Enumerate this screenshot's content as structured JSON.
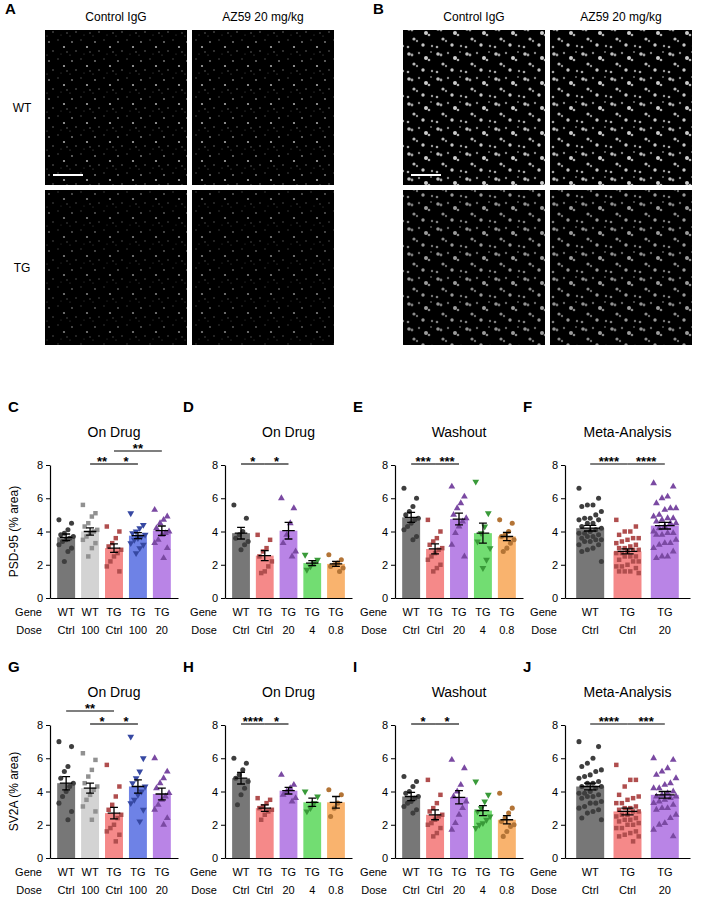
{
  "images": [
    {
      "panel": "A",
      "columns": [
        "Control IgG",
        "AZ59 20 mg/kg"
      ],
      "rows": [
        "WT",
        "TG"
      ]
    },
    {
      "panel": "B",
      "columns": [
        "Control IgG",
        "AZ59 20 mg/kg"
      ]
    }
  ],
  "chart_data": [
    {
      "type": "bar",
      "panel": "C",
      "title": "On Drug",
      "y_label": "PSD-95 (% area)",
      "row_labels": [
        "Gene",
        "Dose"
      ],
      "categories": [
        "WT",
        "WT",
        "TG",
        "TG",
        "TG"
      ],
      "doses": [
        "Ctrl",
        "100",
        "Ctrl",
        "100",
        "20"
      ],
      "values": [
        3.65,
        4.0,
        3.0,
        3.75,
        4.05
      ],
      "errors": [
        0.2,
        0.22,
        0.25,
        0.18,
        0.28
      ],
      "points": [
        [
          4.7,
          4.5,
          4.1,
          3.9,
          3.8,
          3.7,
          3.6,
          3.5,
          3.4,
          3.2,
          3.0,
          2.8,
          2.2
        ],
        [
          5.6,
          5.1,
          4.9,
          4.5,
          4.3,
          4.1,
          4.0,
          3.9,
          3.7,
          3.5,
          3.3,
          3.0,
          2.5
        ],
        [
          4.3,
          4.0,
          3.6,
          3.3,
          3.1,
          2.9,
          2.7,
          2.5,
          2.2,
          1.9,
          1.6
        ],
        [
          5.1,
          4.4,
          4.2,
          4.0,
          3.9,
          3.8,
          3.7,
          3.6,
          3.5,
          3.3,
          3.2,
          3.0,
          2.7
        ],
        [
          5.3,
          4.9,
          4.7,
          4.5,
          4.2,
          4.0,
          3.9,
          3.8,
          3.5,
          3.3,
          3.0,
          2.4
        ]
      ],
      "colors": [
        "#555555",
        "#c8c8c8",
        "#f26b6b",
        "#4a63e0",
        "#a865e0"
      ],
      "markers": [
        "circle",
        "square",
        "square",
        "triangle-down",
        "triangle"
      ],
      "ylim": [
        0,
        8
      ],
      "yticks": [
        0,
        2,
        4,
        6,
        8
      ],
      "significance": [
        {
          "from": 1,
          "to": 2,
          "label": "**"
        },
        {
          "from": 2,
          "to": 3,
          "label": "*"
        },
        {
          "from": 2,
          "to": 4,
          "label": "**"
        }
      ]
    },
    {
      "type": "bar",
      "panel": "D",
      "title": "On Drug",
      "row_labels": [
        "Gene",
        "Dose"
      ],
      "categories": [
        "WT",
        "TG",
        "TG",
        "TG",
        "TG"
      ],
      "doses": [
        "Ctrl",
        "Ctrl",
        "20",
        "4",
        "0.8"
      ],
      "values": [
        3.9,
        2.55,
        4.05,
        2.1,
        2.05
      ],
      "errors": [
        0.35,
        0.3,
        0.5,
        0.15,
        0.15
      ],
      "points": [
        [
          5.6,
          4.8,
          4.0,
          3.8,
          3.6,
          3.4,
          3.2,
          2.9
        ],
        [
          3.8,
          3.5,
          3.0,
          2.8,
          2.5,
          2.2,
          1.9,
          1.6,
          1.5
        ],
        [
          6.0,
          5.4,
          4.5,
          3.8,
          3.3,
          2.8,
          2.5
        ],
        [
          2.6,
          2.3,
          2.1,
          1.9,
          1.7
        ],
        [
          2.6,
          2.3,
          2.1,
          2.0,
          1.9,
          1.8,
          1.6
        ]
      ],
      "colors": [
        "#555555",
        "#f26b6b",
        "#a865e0",
        "#4fd44f",
        "#f7a04a"
      ],
      "markers": [
        "circle",
        "square",
        "triangle",
        "triangle-down",
        "circle"
      ],
      "ylim": [
        0,
        8
      ],
      "yticks": [
        0,
        2,
        4,
        6,
        8
      ],
      "significance": [
        {
          "from": 0,
          "to": 1,
          "label": "*"
        },
        {
          "from": 1,
          "to": 2,
          "label": "*"
        }
      ]
    },
    {
      "type": "bar",
      "panel": "E",
      "title": "Washout",
      "row_labels": [
        "Gene",
        "Dose"
      ],
      "categories": [
        "WT",
        "TG",
        "TG",
        "TG",
        "TG"
      ],
      "doses": [
        "Ctrl",
        "Ctrl",
        "20",
        "4",
        "0.8"
      ],
      "values": [
        4.85,
        2.95,
        4.75,
        3.9,
        3.7
      ],
      "errors": [
        0.3,
        0.3,
        0.35,
        0.6,
        0.25
      ],
      "points": [
        [
          6.6,
          6.0,
          5.5,
          5.2,
          5.0,
          4.8,
          4.7,
          4.5,
          4.3,
          4.1,
          3.7,
          3.5
        ],
        [
          4.7,
          4.0,
          3.6,
          3.4,
          3.2,
          3.0,
          2.9,
          2.7,
          2.5,
          2.3,
          2.0,
          1.8,
          1.6
        ],
        [
          6.7,
          6.1,
          5.7,
          5.4,
          5.0,
          4.8,
          4.6,
          4.3,
          3.9,
          3.2,
          2.5
        ],
        [
          7.0,
          5.1,
          4.3,
          3.9,
          3.4,
          3.0,
          2.3,
          1.8
        ],
        [
          4.7,
          4.5,
          4.0,
          3.8,
          3.7,
          3.5,
          3.3,
          3.0,
          2.8
        ]
      ],
      "colors": [
        "#555555",
        "#f26b6b",
        "#a865e0",
        "#4fd44f",
        "#f7a04a"
      ],
      "markers": [
        "circle",
        "square",
        "triangle",
        "triangle-down",
        "circle"
      ],
      "ylim": [
        0,
        8
      ],
      "yticks": [
        0,
        2,
        4,
        6,
        8
      ],
      "significance": [
        {
          "from": 0,
          "to": 1,
          "label": "***"
        },
        {
          "from": 1,
          "to": 2,
          "label": "***"
        }
      ]
    },
    {
      "type": "bar",
      "panel": "F",
      "title": "Meta-Analysis",
      "row_labels": [
        "Gene",
        "Dose"
      ],
      "categories": [
        "WT",
        "TG",
        "TG"
      ],
      "doses": [
        "Ctrl",
        "Ctrl",
        "20"
      ],
      "values": [
        4.2,
        2.8,
        4.35
      ],
      "errors": [
        0.17,
        0.15,
        0.2
      ],
      "points": [
        [
          6.6,
          6.0,
          5.6,
          5.6,
          5.5,
          5.2,
          5.0,
          4.8,
          4.8,
          4.7,
          4.7,
          4.5,
          4.5,
          4.3,
          4.2,
          4.1,
          4.0,
          3.9,
          3.9,
          3.8,
          3.7,
          3.7,
          3.6,
          3.5,
          3.5,
          3.4,
          3.4,
          3.2,
          3.2,
          3.0,
          2.9,
          2.8,
          2.2
        ],
        [
          4.7,
          4.3,
          4.0,
          4.0,
          3.8,
          3.6,
          3.6,
          3.5,
          3.4,
          3.3,
          3.2,
          3.1,
          3.0,
          3.0,
          2.9,
          2.9,
          2.8,
          2.7,
          2.7,
          2.5,
          2.5,
          2.5,
          2.3,
          2.2,
          2.2,
          2.0,
          1.9,
          1.9,
          1.8,
          1.6,
          1.6,
          1.6,
          1.5
        ],
        [
          6.9,
          6.7,
          6.1,
          6.0,
          5.7,
          5.4,
          5.4,
          5.3,
          5.0,
          4.9,
          4.8,
          4.8,
          4.7,
          4.6,
          4.5,
          4.5,
          4.3,
          4.2,
          4.0,
          3.9,
          3.9,
          3.8,
          3.8,
          3.5,
          3.3,
          3.3,
          3.2,
          3.0,
          2.8,
          2.5,
          2.5,
          2.4
        ]
      ],
      "colors": [
        "#555555",
        "#f26b6b",
        "#a865e0"
      ],
      "markers": [
        "circle",
        "square",
        "triangle"
      ],
      "ylim": [
        0,
        8
      ],
      "yticks": [
        0,
        2,
        4,
        6,
        8
      ],
      "significance": [
        {
          "from": 0,
          "to": 1,
          "label": "****"
        },
        {
          "from": 1,
          "to": 2,
          "label": "****"
        }
      ]
    },
    {
      "type": "bar",
      "panel": "G",
      "title": "On Drug",
      "y_label": "SV2A (% area)",
      "row_labels": [
        "Gene",
        "Dose"
      ],
      "categories": [
        "WT",
        "WT",
        "TG",
        "TG",
        "TG"
      ],
      "doses": [
        "Ctrl",
        "100",
        "Ctrl",
        "100",
        "20"
      ],
      "values": [
        4.5,
        4.2,
        2.7,
        4.3,
        3.85
      ],
      "errors": [
        0.4,
        0.3,
        0.35,
        0.4,
        0.35
      ],
      "points": [
        [
          7.0,
          6.7,
          5.5,
          5.2,
          4.8,
          4.5,
          4.3,
          4.0,
          3.7,
          3.3,
          2.8,
          2.3
        ],
        [
          6.3,
          5.9,
          5.3,
          4.9,
          4.5,
          4.3,
          4.1,
          3.8,
          3.5,
          3.1,
          2.8,
          2.3
        ],
        [
          5.6,
          4.3,
          3.7,
          3.2,
          2.9,
          2.6,
          2.4,
          2.0,
          1.8,
          1.6,
          1.4,
          1.0
        ],
        [
          7.3,
          6.0,
          5.2,
          4.8,
          4.5,
          4.3,
          4.0,
          3.8,
          3.5,
          3.3,
          2.9,
          2.2
        ],
        [
          6.0,
          5.2,
          4.8,
          4.5,
          4.2,
          3.9,
          3.7,
          3.5,
          3.2,
          2.9,
          2.4,
          2.0
        ]
      ],
      "colors": [
        "#555555",
        "#c8c8c8",
        "#f26b6b",
        "#4a63e0",
        "#a865e0"
      ],
      "markers": [
        "circle",
        "square",
        "square",
        "triangle-down",
        "triangle"
      ],
      "ylim": [
        0,
        8
      ],
      "yticks": [
        0,
        2,
        4,
        6,
        8
      ],
      "significance": [
        {
          "from": 0,
          "to": 2,
          "label": "**"
        },
        {
          "from": 1,
          "to": 2,
          "label": "*"
        },
        {
          "from": 2,
          "to": 3,
          "label": "*"
        }
      ]
    },
    {
      "type": "bar",
      "panel": "H",
      "title": "On Drug",
      "row_labels": [
        "Gene",
        "Dose"
      ],
      "categories": [
        "WT",
        "TG",
        "TG",
        "TG",
        "TG"
      ],
      "doses": [
        "Ctrl",
        "Ctrl",
        "20",
        "4",
        "0.8"
      ],
      "values": [
        4.8,
        3.0,
        4.05,
        3.35,
        3.35
      ],
      "errors": [
        0.35,
        0.2,
        0.2,
        0.25,
        0.35
      ],
      "points": [
        [
          6.0,
          5.7,
          5.3,
          5.0,
          4.8,
          4.6,
          4.2,
          3.8,
          3.2
        ],
        [
          3.6,
          3.5,
          3.3,
          3.1,
          3.0,
          2.9,
          2.8,
          2.6,
          2.3
        ],
        [
          5.0,
          4.4,
          4.2,
          4.0,
          3.8,
          3.6,
          3.4
        ],
        [
          4.0,
          3.7,
          3.3,
          3.0,
          2.8
        ],
        [
          4.1,
          3.8,
          3.3,
          3.0,
          2.5
        ]
      ],
      "colors": [
        "#555555",
        "#f26b6b",
        "#a865e0",
        "#4fd44f",
        "#f7a04a"
      ],
      "markers": [
        "circle",
        "square",
        "triangle",
        "triangle-down",
        "circle"
      ],
      "ylim": [
        0,
        8
      ],
      "yticks": [
        0,
        2,
        4,
        6,
        8
      ],
      "significance": [
        {
          "from": 0,
          "to": 1,
          "label": "****"
        },
        {
          "from": 1,
          "to": 2,
          "label": "*"
        }
      ]
    },
    {
      "type": "bar",
      "panel": "I",
      "title": "Washout",
      "row_labels": [
        "Gene",
        "Dose"
      ],
      "categories": [
        "WT",
        "TG",
        "TG",
        "TG",
        "TG"
      ],
      "doses": [
        "Ctrl",
        "Ctrl",
        "20",
        "4",
        "0.8"
      ],
      "values": [
        3.7,
        2.6,
        3.65,
        2.85,
        2.3
      ],
      "errors": [
        0.25,
        0.3,
        0.4,
        0.3,
        0.25
      ],
      "points": [
        [
          4.9,
          4.6,
          4.3,
          4.0,
          3.9,
          3.7,
          3.6,
          3.4,
          3.3,
          3.1,
          2.9,
          2.7
        ],
        [
          4.7,
          3.8,
          3.3,
          3.0,
          2.8,
          2.6,
          2.5,
          2.3,
          2.1,
          2.0,
          1.8,
          1.5,
          1.3
        ],
        [
          5.9,
          5.4,
          4.4,
          4.0,
          3.7,
          3.4,
          3.0,
          2.6,
          2.1,
          1.7
        ],
        [
          4.6,
          3.8,
          3.4,
          3.0,
          2.8,
          2.5,
          2.3,
          2.1,
          2.0,
          1.8
        ],
        [
          3.9,
          3.0,
          2.7,
          2.4,
          2.2,
          2.0,
          1.9,
          1.6,
          1.3
        ]
      ],
      "colors": [
        "#555555",
        "#f26b6b",
        "#a865e0",
        "#4fd44f",
        "#f7a04a"
      ],
      "markers": [
        "circle",
        "square",
        "triangle",
        "triangle-down",
        "circle"
      ],
      "ylim": [
        0,
        8
      ],
      "yticks": [
        0,
        2,
        4,
        6,
        8
      ],
      "significance": [
        {
          "from": 0,
          "to": 1,
          "label": "*"
        },
        {
          "from": 1,
          "to": 2,
          "label": "*"
        }
      ]
    },
    {
      "type": "bar",
      "panel": "J",
      "title": "Meta-Analysis",
      "row_labels": [
        "Gene",
        "Dose"
      ],
      "categories": [
        "WT",
        "TG",
        "TG"
      ],
      "doses": [
        "Ctrl",
        "Ctrl",
        "20"
      ],
      "values": [
        4.3,
        2.8,
        3.8
      ],
      "errors": [
        0.2,
        0.2,
        0.2
      ],
      "points": [
        [
          7.0,
          6.7,
          6.0,
          5.7,
          5.5,
          5.3,
          5.2,
          5.0,
          4.9,
          4.8,
          4.6,
          4.5,
          4.5,
          4.3,
          4.3,
          4.2,
          4.0,
          3.9,
          3.9,
          3.8,
          3.7,
          3.7,
          3.6,
          3.4,
          3.3,
          3.3,
          3.1,
          3.0,
          2.9,
          2.8,
          2.7,
          2.4,
          2.3
        ],
        [
          5.6,
          4.7,
          4.7,
          4.3,
          3.8,
          3.7,
          3.6,
          3.5,
          3.3,
          3.3,
          3.1,
          3.0,
          3.0,
          2.9,
          2.8,
          2.8,
          2.6,
          2.6,
          2.5,
          2.4,
          2.3,
          2.3,
          2.2,
          2.1,
          2.0,
          2.0,
          1.8,
          1.8,
          1.6,
          1.5,
          1.4,
          1.3,
          1.3,
          1.0
        ],
        [
          6.0,
          5.9,
          5.4,
          5.2,
          5.0,
          4.8,
          4.5,
          4.4,
          4.2,
          4.2,
          4.0,
          3.9,
          3.8,
          3.7,
          3.7,
          3.6,
          3.5,
          3.4,
          3.3,
          3.2,
          3.0,
          3.0,
          2.9,
          2.6,
          2.4,
          2.1,
          2.0,
          1.7,
          1.3
        ]
      ],
      "colors": [
        "#555555",
        "#f26b6b",
        "#a865e0"
      ],
      "markers": [
        "circle",
        "square",
        "triangle"
      ],
      "ylim": [
        0,
        8
      ],
      "yticks": [
        0,
        2,
        4,
        6,
        8
      ],
      "significance": [
        {
          "from": 0,
          "to": 1,
          "label": "****"
        },
        {
          "from": 1,
          "to": 2,
          "label": "***"
        }
      ]
    }
  ]
}
